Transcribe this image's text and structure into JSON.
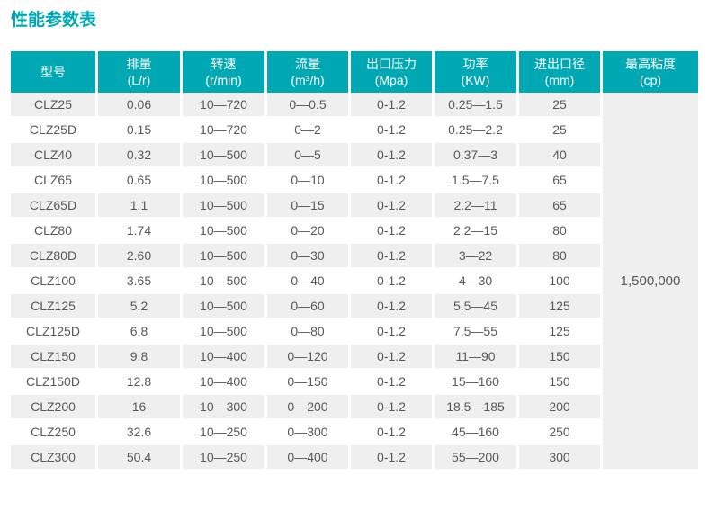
{
  "title": "性能参数表",
  "colors": {
    "accent": "#00A8B4",
    "header_text": "#FFFFFF",
    "row_alt_bg": "#EFEFEF",
    "row_bg": "#FFFFFF",
    "body_text": "#58595B"
  },
  "table": {
    "columns": [
      {
        "label": "型号",
        "sub": ""
      },
      {
        "label": "排量",
        "sub": "(L/r)"
      },
      {
        "label": "转速",
        "sub": "(r/min)"
      },
      {
        "label": "流量",
        "sub": "(m³/h)"
      },
      {
        "label": "出口压力",
        "sub": "(Mpa)"
      },
      {
        "label": "功率",
        "sub": "(KW)"
      },
      {
        "label": "进出口径",
        "sub": "(mm)"
      },
      {
        "label": "最高粘度",
        "sub": "(cp)"
      }
    ],
    "rows": [
      [
        "CLZ25",
        "0.06",
        "10—720",
        "0—0.5",
        "0-1.2",
        "0.25—1.5",
        "25"
      ],
      [
        "CLZ25D",
        "0.15",
        "10—720",
        "0—2",
        "0-1.2",
        "0.25—2.2",
        "25"
      ],
      [
        "CLZ40",
        "0.32",
        "10—500",
        "0—5",
        "0-1.2",
        "0.37—3",
        "40"
      ],
      [
        "CLZ65",
        "0.65",
        "10—500",
        "0—10",
        "0-1.2",
        "1.5—7.5",
        "65"
      ],
      [
        "CLZ65D",
        "1.1",
        "10—500",
        "0—15",
        "0-1.2",
        "2.2—11",
        "65"
      ],
      [
        "CLZ80",
        "1.74",
        "10—500",
        "0—20",
        "0-1.2",
        "2.2—15",
        "80"
      ],
      [
        "CLZ80D",
        "2.60",
        "10—500",
        "0—30",
        "0-1.2",
        "3—22",
        "80"
      ],
      [
        "CLZ100",
        "3.65",
        "10—500",
        "0—40",
        "0-1.2",
        "4—30",
        "100"
      ],
      [
        "CLZ125",
        "5.2",
        "10—500",
        "0—60",
        "0-1.2",
        "5.5—45",
        "125"
      ],
      [
        "CLZ125D",
        "6.8",
        "10—500",
        "0—80",
        "0-1.2",
        "7.5—55",
        "125"
      ],
      [
        "CLZ150",
        "9.8",
        "10—400",
        "0—120",
        "0-1.2",
        "11—90",
        "150"
      ],
      [
        "CLZ150D",
        "12.8",
        "10—400",
        "0—150",
        "0-1.2",
        "15—160",
        "150"
      ],
      [
        "CLZ200",
        "16",
        "10—300",
        "0—200",
        "0-1.2",
        "18.5—185",
        "200"
      ],
      [
        "CLZ250",
        "32.6",
        "10—250",
        "0—300",
        "0-1.2",
        "45—160",
        "250"
      ],
      [
        "CLZ300",
        "50.4",
        "10—250",
        "0—400",
        "0-1.2",
        "55—200",
        "300"
      ]
    ],
    "merged_viscosity": "1,500,000"
  }
}
